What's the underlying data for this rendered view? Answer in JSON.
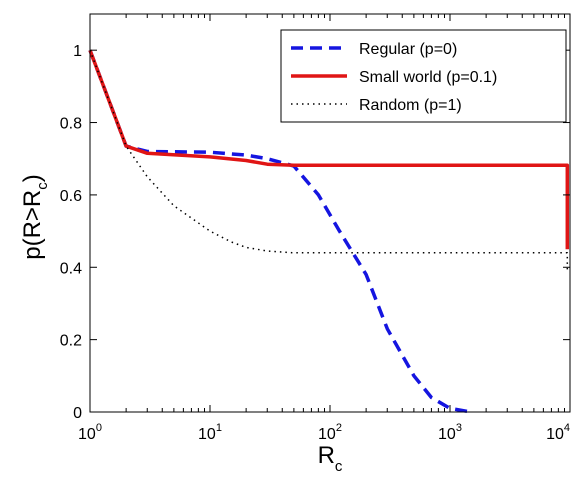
{
  "chart_data": {
    "type": "line",
    "title": "",
    "xlabel": {
      "base": "R",
      "sub": "c"
    },
    "ylabel": {
      "prefix": "p(R>R",
      "sub": "c",
      "suffix": ")"
    },
    "x_scale": "log",
    "xlim": [
      1,
      10000
    ],
    "ylim": [
      0,
      1.1
    ],
    "grid": false,
    "legend_position": "top-right",
    "x_ticks": [
      {
        "value": 1,
        "base": "10",
        "exp": "0"
      },
      {
        "value": 10,
        "base": "10",
        "exp": "1"
      },
      {
        "value": 100,
        "base": "10",
        "exp": "2"
      },
      {
        "value": 1000,
        "base": "10",
        "exp": "3"
      },
      {
        "value": 10000,
        "base": "10",
        "exp": "4"
      }
    ],
    "y_ticks": [
      {
        "value": 0,
        "label": "0"
      },
      {
        "value": 0.2,
        "label": "0.2"
      },
      {
        "value": 0.4,
        "label": "0.4"
      },
      {
        "value": 0.6,
        "label": "0.6"
      },
      {
        "value": 0.8,
        "label": "0.8"
      },
      {
        "value": 1,
        "label": "1"
      }
    ],
    "series": [
      {
        "name": "Regular (p=0)",
        "color": "#1515e0",
        "style": "dashed",
        "points": [
          [
            1,
            1.0
          ],
          [
            2,
            0.735
          ],
          [
            3,
            0.72
          ],
          [
            10,
            0.718
          ],
          [
            20,
            0.71
          ],
          [
            30,
            0.7
          ],
          [
            50,
            0.68
          ],
          [
            80,
            0.6
          ],
          [
            120,
            0.5
          ],
          [
            200,
            0.38
          ],
          [
            300,
            0.23
          ],
          [
            500,
            0.1
          ],
          [
            700,
            0.04
          ],
          [
            1000,
            0.01
          ],
          [
            1500,
            0.0
          ]
        ]
      },
      {
        "name": "Small world (p=0.1)",
        "color": "#e01515",
        "style": "solid",
        "points": [
          [
            1,
            1.0
          ],
          [
            2,
            0.735
          ],
          [
            3,
            0.715
          ],
          [
            10,
            0.705
          ],
          [
            20,
            0.695
          ],
          [
            30,
            0.685
          ],
          [
            50,
            0.682
          ],
          [
            100,
            0.682
          ],
          [
            1000,
            0.682
          ],
          [
            9500,
            0.682
          ],
          [
            9500,
            0.45
          ]
        ]
      },
      {
        "name": "Random (p=1)",
        "color": "#000000",
        "style": "dotted",
        "points": [
          [
            1,
            1.0
          ],
          [
            2,
            0.735
          ],
          [
            3,
            0.65
          ],
          [
            5,
            0.57
          ],
          [
            10,
            0.5
          ],
          [
            15,
            0.47
          ],
          [
            20,
            0.455
          ],
          [
            30,
            0.445
          ],
          [
            50,
            0.44
          ],
          [
            100,
            0.44
          ],
          [
            1000,
            0.44
          ],
          [
            9500,
            0.44
          ],
          [
            9500,
            0.39
          ]
        ]
      }
    ]
  }
}
